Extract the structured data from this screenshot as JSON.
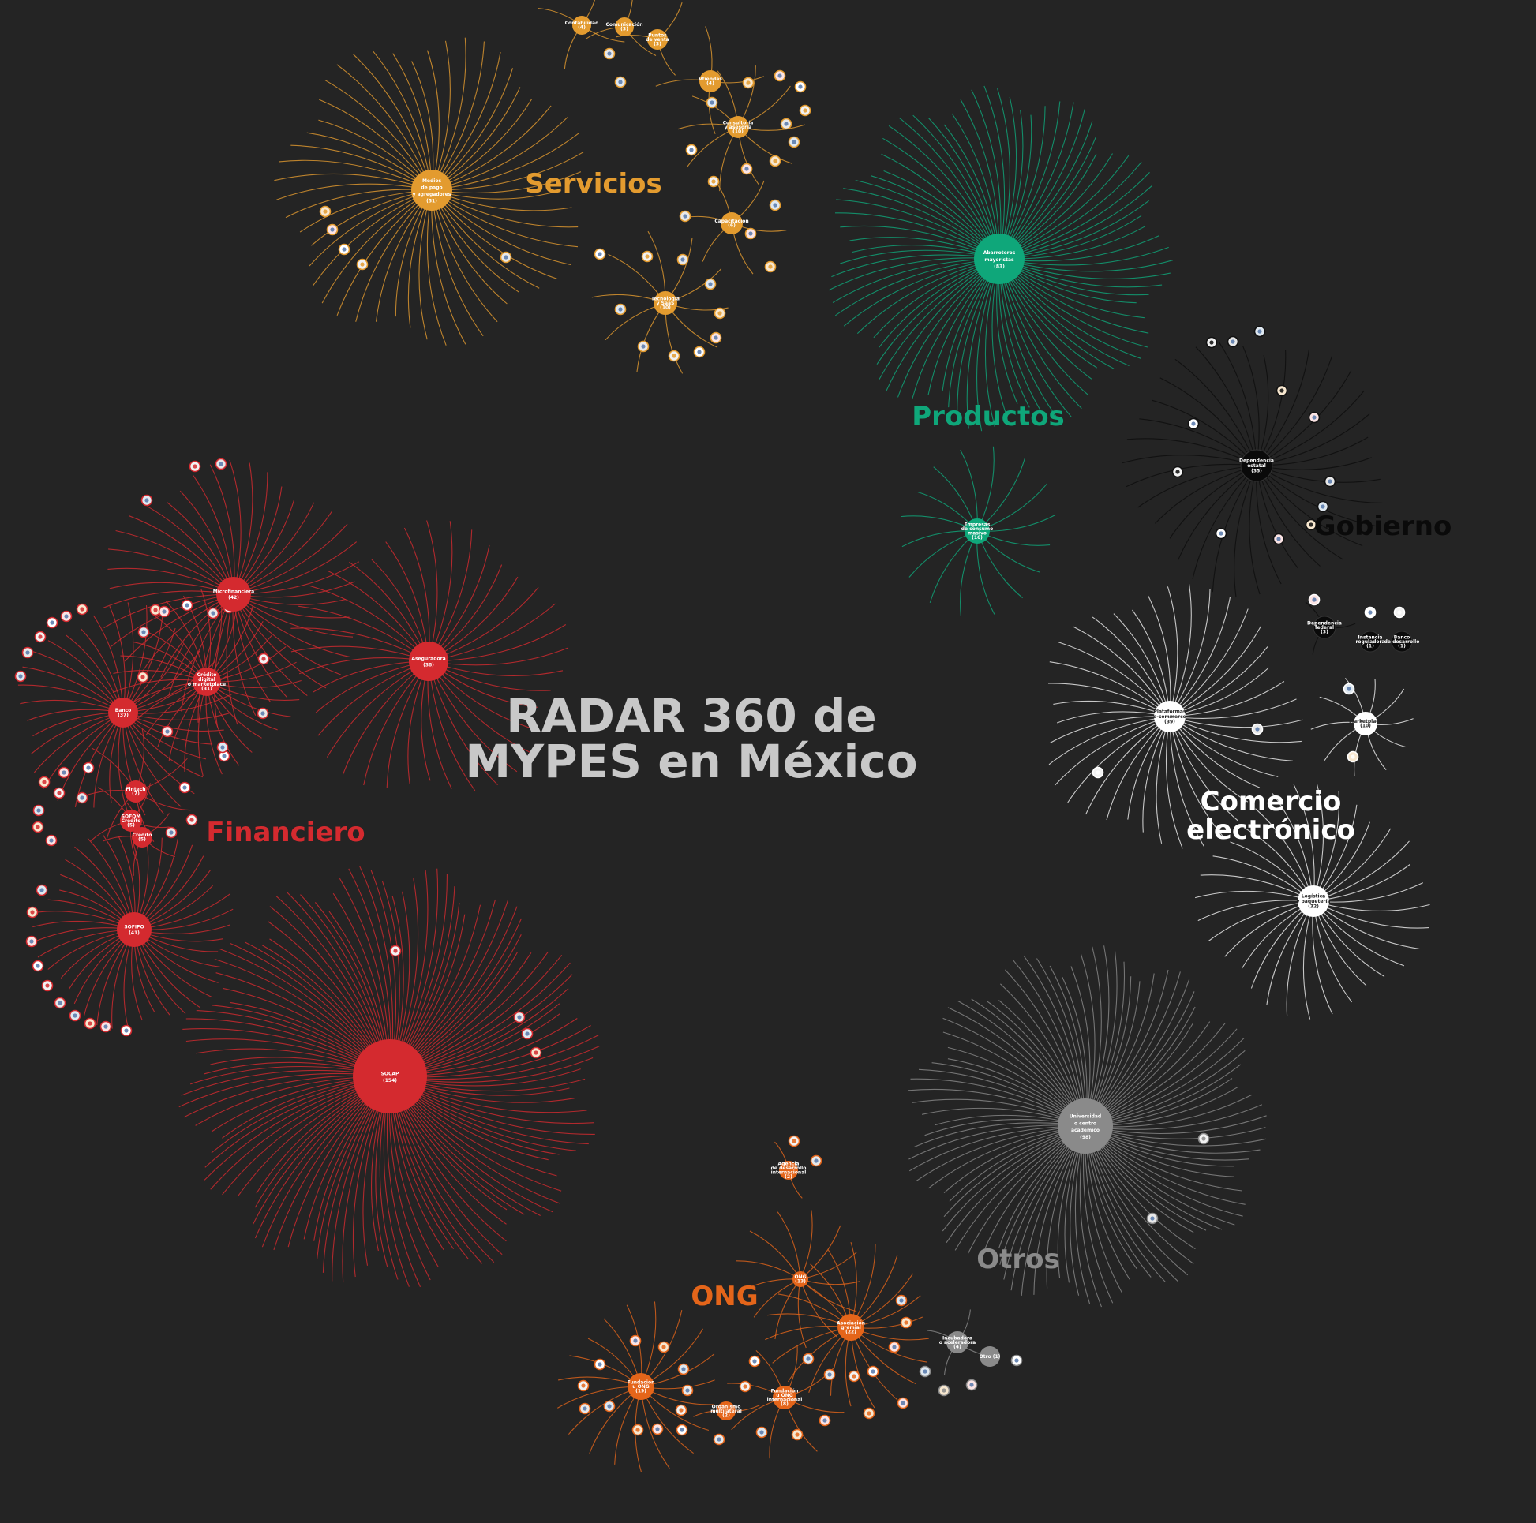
{
  "title": {
    "line1": "RADAR 360 de",
    "line2": "MYPES en México"
  },
  "colors": {
    "background": "#242424",
    "title": "#c8c8c8",
    "Servicios": "#e39b2f",
    "Productos": "#0fa77a",
    "Gobierno": "#0a0a0a",
    "Comercio": "#ffffff",
    "Otros": "#8a8a8a",
    "ONG": "#e4651a",
    "Financiero": "#d42a2f"
  },
  "sectors": [
    {
      "name": "Servicios",
      "lines": [
        "Servicios"
      ],
      "color_key": "Servicios"
    },
    {
      "name": "Productos",
      "lines": [
        "Productos"
      ],
      "color_key": "Productos"
    },
    {
      "name": "Gobierno",
      "lines": [
        "Gobierno"
      ],
      "color_key": "Gobierno"
    },
    {
      "name": "Comercio electrónico",
      "lines": [
        "Comercio",
        "electrónico"
      ],
      "color_key": "Comercio"
    },
    {
      "name": "Otros",
      "lines": [
        "Otros"
      ],
      "color_key": "Otros"
    },
    {
      "name": "ONG",
      "lines": [
        "ONG"
      ],
      "color_key": "ONG"
    },
    {
      "name": "Financiero",
      "lines": [
        "Financiero"
      ],
      "color_key": "Financiero"
    }
  ],
  "hubs": [
    {
      "id": "medios-pago",
      "sector": "Servicios",
      "label": [
        "Medios",
        "de pago",
        "y agregadores",
        "(51)"
      ],
      "count": 51
    },
    {
      "id": "contabilidad",
      "sector": "Servicios",
      "label": [
        "Contabilidad",
        "(4)"
      ],
      "count": 4
    },
    {
      "id": "comunicacion",
      "sector": "Servicios",
      "label": [
        "Comunicación",
        "(3)"
      ],
      "count": 3
    },
    {
      "id": "puntos-venta",
      "sector": "Servicios",
      "label": [
        "Puntos",
        "de venta",
        "(3)"
      ],
      "count": 3
    },
    {
      "id": "vtiendas",
      "sector": "Servicios",
      "label": [
        "Vtiendas",
        "(4)"
      ],
      "count": 4
    },
    {
      "id": "consultoria",
      "sector": "Servicios",
      "label": [
        "Consultoría",
        "y asesoría",
        "(10)"
      ],
      "count": 10
    },
    {
      "id": "capacitacion",
      "sector": "Servicios",
      "label": [
        "Capacitación",
        "(6)"
      ],
      "count": 6
    },
    {
      "id": "tecnologia",
      "sector": "Servicios",
      "label": [
        "Tecnología",
        "y SaaS",
        "(10)"
      ],
      "count": 10
    },
    {
      "id": "abarroteros",
      "sector": "Productos",
      "label": [
        "Abarroteros",
        "mayoristas",
        "(83)"
      ],
      "count": 83
    },
    {
      "id": "empresas-consumo",
      "sector": "Productos",
      "label": [
        "Empresas",
        "de consumo",
        "masivo",
        "(16)"
      ],
      "count": 16
    },
    {
      "id": "dependencia-estatal",
      "sector": "Gobierno",
      "label": [
        "Dependencia",
        "estatal",
        "(35)"
      ],
      "count": 35
    },
    {
      "id": "dependencia-federal",
      "sector": "Gobierno",
      "label": [
        "Dependencia",
        "federal",
        "(3)"
      ],
      "count": 3
    },
    {
      "id": "instancia-reguladora",
      "sector": "Gobierno",
      "label": [
        "Instancia",
        "reguladora",
        "(1)"
      ],
      "count": 1
    },
    {
      "id": "banco-desarrollo",
      "sector": "Gobierno",
      "label": [
        "Banco",
        "de desarrollo",
        "(1)"
      ],
      "count": 1
    },
    {
      "id": "plataformas",
      "sector": "Comercio",
      "label": [
        "Plataformas",
        "e-commerce",
        "(39)"
      ],
      "count": 39
    },
    {
      "id": "marketplace",
      "sector": "Comercio",
      "label": [
        "Marketplace",
        "(10)"
      ],
      "count": 10
    },
    {
      "id": "logistica",
      "sector": "Comercio",
      "label": [
        "Logística",
        "y paquetería",
        "(32)"
      ],
      "count": 32
    },
    {
      "id": "universidad",
      "sector": "Otros",
      "label": [
        "Universidad",
        "o centro",
        "académico",
        "(98)"
      ],
      "count": 98
    },
    {
      "id": "incubadora",
      "sector": "Otros",
      "label": [
        "Incubadora",
        "o aceleradora",
        "(4)"
      ],
      "count": 4
    },
    {
      "id": "otro",
      "sector": "Otros",
      "label": [
        "Otro (1)"
      ],
      "count": 1
    },
    {
      "id": "agencia-desarrollo",
      "sector": "ONG",
      "label": [
        "Agencia",
        "de desarrollo",
        "internacional",
        "(2)"
      ],
      "count": 2
    },
    {
      "id": "ong-verde",
      "sector": "ONG",
      "label": [
        "ONG",
        "(13)"
      ],
      "count": 13
    },
    {
      "id": "asociacion-gremial",
      "sector": "ONG",
      "label": [
        "Asociación",
        "gremial",
        "(22)"
      ],
      "count": 22
    },
    {
      "id": "fundacion",
      "sector": "ONG",
      "label": [
        "Fundación",
        "u ONG",
        "(19)"
      ],
      "count": 19
    },
    {
      "id": "fundacion-nac",
      "sector": "ONG",
      "label": [
        "Fundación",
        "u ONG",
        "internacional",
        "(8)"
      ],
      "count": 8
    },
    {
      "id": "organismo-multilateral",
      "sector": "ONG",
      "label": [
        "Organismo",
        "multilateral",
        "(2)"
      ],
      "count": 2
    },
    {
      "id": "microfinanciera",
      "sector": "Financiero",
      "label": [
        "Microfinanciera",
        "(42)"
      ],
      "count": 42
    },
    {
      "id": "aseguradora",
      "sector": "Financiero",
      "label": [
        "Aseguradora",
        "(38)"
      ],
      "count": 38
    },
    {
      "id": "banco",
      "sector": "Financiero",
      "label": [
        "Banco",
        "(37)"
      ],
      "count": 37
    },
    {
      "id": "credito-digital",
      "sector": "Financiero",
      "label": [
        "Crédito",
        "digital",
        "o marketplace",
        "(31)"
      ],
      "count": 31
    },
    {
      "id": "fintech",
      "sector": "Financiero",
      "label": [
        "Fintech",
        "(7)"
      ],
      "count": 7
    },
    {
      "id": "sofom-credito",
      "sector": "Financiero",
      "label": [
        "SOFOM",
        "Crédito",
        "(5)"
      ],
      "count": 5
    },
    {
      "id": "credito",
      "sector": "Financiero",
      "label": [
        "Crédito",
        "(5)"
      ],
      "count": 5
    },
    {
      "id": "sofipo",
      "sector": "Financiero",
      "label": [
        "SOFIPO",
        "(41)"
      ],
      "count": 41
    },
    {
      "id": "socap",
      "sector": "Financiero",
      "label": [
        "SOCAP",
        "(154)"
      ],
      "count": 154
    }
  ]
}
